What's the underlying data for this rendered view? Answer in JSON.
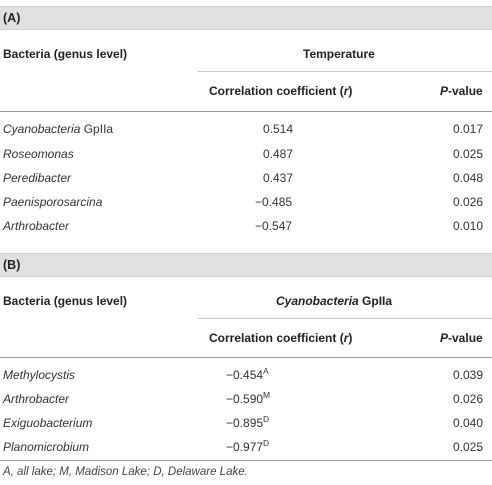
{
  "partA": {
    "label": "(A)",
    "bacteria_header": "Bacteria (genus level)",
    "group_header": "Temperature",
    "corr_header_pre": "Correlation coefficient (",
    "corr_header_r": "r",
    "corr_header_post": ")",
    "p_header_p": "P",
    "p_header_rest": "-value",
    "rows": [
      {
        "name_italic": "Cyanobacteria",
        "name_rest": " GpIIa",
        "r": "0.514",
        "p": "0.017"
      },
      {
        "name_italic": "Roseomonas",
        "name_rest": "",
        "r": "0.487",
        "p": "0.025"
      },
      {
        "name_italic": "Peredibacter",
        "name_rest": "",
        "r": "0.437",
        "p": "0.048"
      },
      {
        "name_italic": "Paenisporosarcina",
        "name_rest": "",
        "r": "−0.485",
        "p": "0.026"
      },
      {
        "name_italic": "Arthrobacter",
        "name_rest": "",
        "r": "−0.547",
        "p": "0.010"
      }
    ]
  },
  "partB": {
    "label": "(B)",
    "bacteria_header": "Bacteria (genus level)",
    "group_header_italic": "Cyanobacteria",
    "group_header_rest": " GpIIa",
    "corr_header_pre": "Correlation coefficient (",
    "corr_header_r": "r",
    "corr_header_post": ")",
    "p_header_p": "P",
    "p_header_rest": "-value",
    "rows": [
      {
        "name_italic": "Methylocystis",
        "r": "−0.454",
        "sup": "A",
        "p": "0.039"
      },
      {
        "name_italic": "Arthrobacter",
        "r": "−0.590",
        "sup": "M",
        "p": "0.026"
      },
      {
        "name_italic": "Exiguobacterium",
        "r": "−0.895",
        "sup": "D",
        "p": "0.040"
      },
      {
        "name_italic": "Planomicrobium",
        "r": "−0.977",
        "sup": "D",
        "p": "0.025"
      }
    ]
  },
  "footnote": "A, all lake; M, Madison Lake; D, Delaware Lake."
}
